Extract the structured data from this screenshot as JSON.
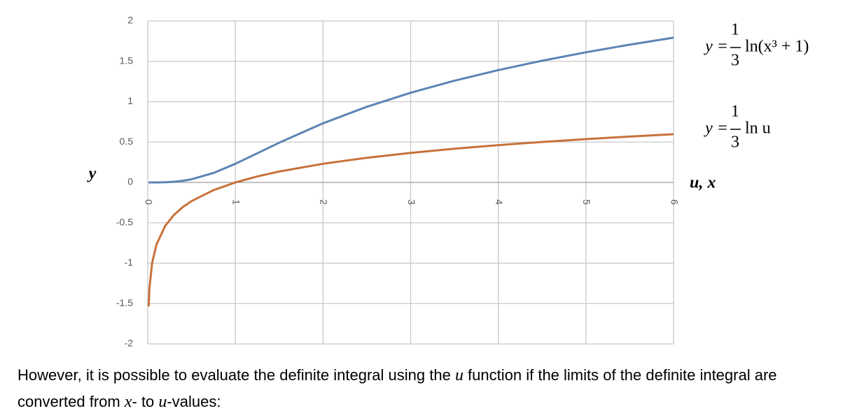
{
  "chart_data": {
    "type": "line",
    "x": [
      0.01,
      0.02,
      0.05,
      0.1,
      0.2,
      0.3,
      0.4,
      0.5,
      0.75,
      1,
      1.25,
      1.5,
      2,
      2.5,
      3,
      3.5,
      4,
      4.5,
      5,
      5.5,
      6
    ],
    "series": [
      {
        "color": "#5b84b4",
        "values": [
          0,
          0,
          0,
          0.0003,
          0.0027,
          0.0089,
          0.0207,
          0.0393,
          0.1173,
          0.231,
          0.361,
          0.492,
          0.7324,
          0.937,
          1.1107,
          1.2604,
          1.3915,
          1.5077,
          1.6121,
          1.7067,
          1.7933
        ]
      },
      {
        "color": "#c8713a",
        "values": [
          -1.5351,
          -1.304,
          -0.9986,
          -0.7675,
          -0.5365,
          -0.4013,
          -0.3054,
          -0.231,
          -0.0959,
          0,
          0.0744,
          0.1352,
          0.231,
          0.3054,
          0.3662,
          0.4176,
          0.4621,
          0.5014,
          0.5365,
          0.5682,
          0.5973
        ]
      }
    ],
    "xlim": [
      0,
      6
    ],
    "xticks": [
      0,
      1,
      2,
      3,
      4,
      5,
      6
    ],
    "ylim": [
      -2,
      2
    ],
    "yticks": [
      2,
      1.5,
      1,
      0.5,
      0,
      -0.5,
      -1,
      -1.5,
      -2
    ],
    "grid": true,
    "y_label": "y",
    "x_label": "u, x",
    "annotations": [
      {
        "lhs": "y =",
        "numerator": "1",
        "denominator": "3",
        "rhs": "ln(x³ + 1)"
      },
      {
        "lhs": "y =",
        "numerator": "1",
        "denominator": "3",
        "rhs": "ln u"
      }
    ]
  },
  "paragraph": [
    {
      "text": "However, it is possible to evaluate the definite integral using the ",
      "italic": false
    },
    {
      "text": "u",
      "italic": true
    },
    {
      "text": " function if the limits of the definite integral are converted from ",
      "italic": false
    },
    {
      "text": "x",
      "italic": true
    },
    {
      "text": "- to ",
      "italic": false
    },
    {
      "text": "u",
      "italic": true
    },
    {
      "text": "-values:",
      "italic": false
    }
  ]
}
